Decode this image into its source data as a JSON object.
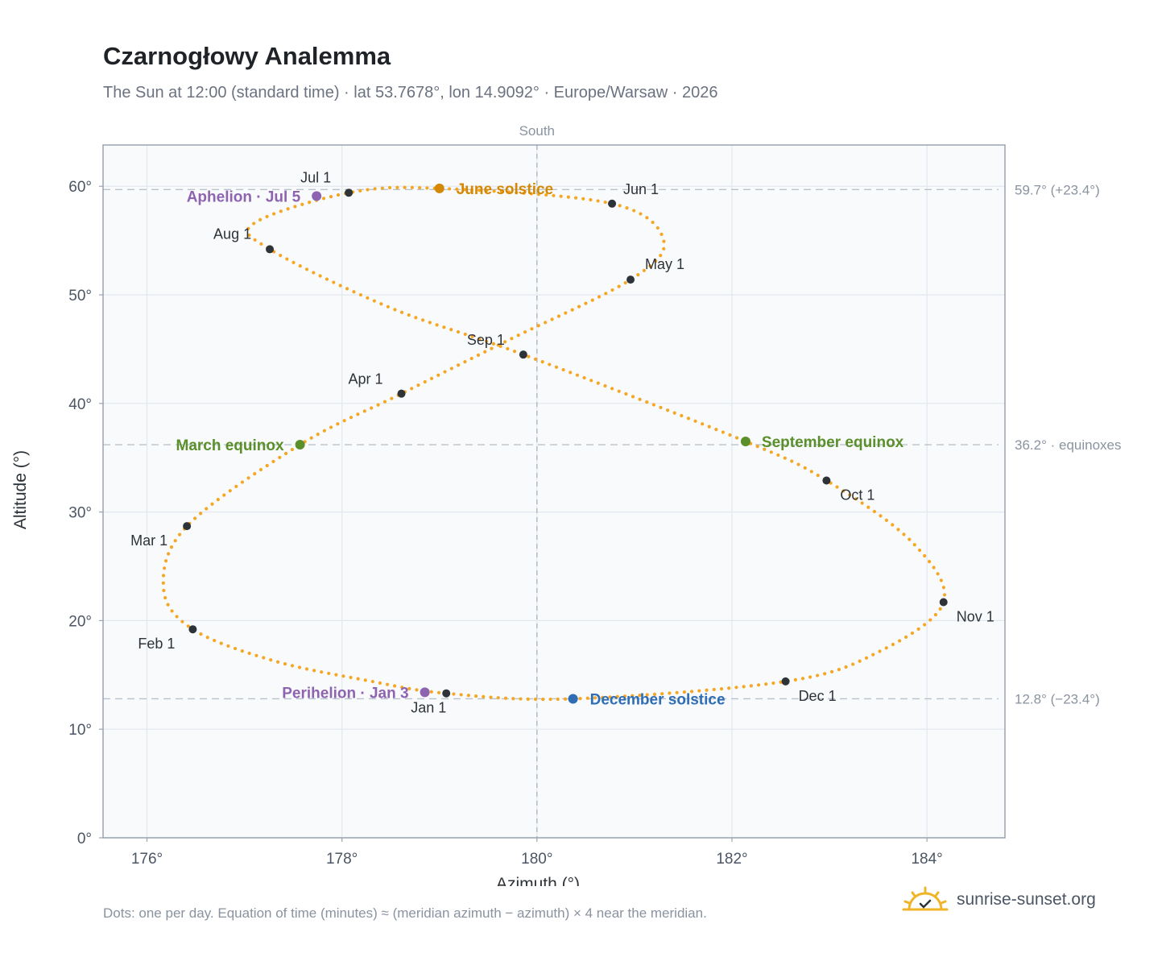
{
  "header": {
    "title": "Czarnogłowy Analemma",
    "subtitle": "The Sun at 12:00 (standard time) · lat 53.7678°, lon 14.9092° · Europe/Warsaw · 2026"
  },
  "footer": {
    "note": "Dots: one per day. Equation of time (minutes) ≈ (meridian azimuth − azimuth) × 4 near the meridian.",
    "brand": "sunrise-sunset.org"
  },
  "colors": {
    "curve": "#f5a623",
    "month_dot": "#2d3338",
    "june": "#d48806",
    "december": "#2f6db5",
    "equinox": "#5b8f2a",
    "apsis": "#8e63b0",
    "brand_sun": "#f0b429"
  },
  "chart_data": {
    "type": "scatter",
    "title": "Czarnogłowy Analemma",
    "xlabel": "Azimuth (°)",
    "ylabel": "Altitude (°)",
    "xlim": [
      175.55,
      184.8
    ],
    "ylim": [
      0,
      63.8
    ],
    "xticks": [
      176,
      178,
      180,
      182,
      184
    ],
    "xtick_labels": [
      "176°",
      "178°",
      "180°",
      "182°",
      "184°"
    ],
    "yticks": [
      0,
      10,
      20,
      30,
      40,
      50,
      60
    ],
    "ytick_labels": [
      "0°",
      "10°",
      "20°",
      "30°",
      "40°",
      "50°",
      "60°"
    ],
    "grid": true,
    "meridian": {
      "x": 180,
      "label": "South"
    },
    "reference_lines": [
      {
        "y": 59.7,
        "label": "59.7° (+23.4°)"
      },
      {
        "y": 36.2,
        "label": "36.2° · equinoxes"
      },
      {
        "y": 12.8,
        "label": "12.8° (−23.4°)"
      }
    ],
    "months": [
      {
        "label": "Jan 1",
        "x": 179.07,
        "y": 13.3
      },
      {
        "label": "Feb 1",
        "x": 176.47,
        "y": 19.2
      },
      {
        "label": "Mar 1",
        "x": 176.41,
        "y": 28.7
      },
      {
        "label": "Apr 1",
        "x": 178.61,
        "y": 40.9
      },
      {
        "label": "May 1",
        "x": 180.96,
        "y": 51.4
      },
      {
        "label": "Jun 1",
        "x": 180.77,
        "y": 58.4
      },
      {
        "label": "Jul 1",
        "x": 178.07,
        "y": 59.4
      },
      {
        "label": "Aug 1",
        "x": 177.26,
        "y": 54.2
      },
      {
        "label": "Sep 1",
        "x": 179.86,
        "y": 44.5
      },
      {
        "label": "Oct 1",
        "x": 182.97,
        "y": 32.9
      },
      {
        "label": "Nov 1",
        "x": 184.17,
        "y": 21.7
      },
      {
        "label": "Dec 1",
        "x": 182.55,
        "y": 14.4
      }
    ],
    "events": [
      {
        "label": "June solstice",
        "x": 179.0,
        "y": 59.8,
        "kind": "june"
      },
      {
        "label": "December solstice",
        "x": 180.37,
        "y": 12.8,
        "kind": "december"
      },
      {
        "label": "March equinox",
        "x": 177.57,
        "y": 36.2,
        "kind": "equinox"
      },
      {
        "label": "September equinox",
        "x": 182.14,
        "y": 36.5,
        "kind": "equinox"
      },
      {
        "label": "Aphelion · Jul 5",
        "x": 177.74,
        "y": 59.1,
        "kind": "apsis"
      },
      {
        "label": "Perihelion · Jan 3",
        "x": 178.85,
        "y": 13.4,
        "kind": "apsis"
      }
    ],
    "series": [
      {
        "points": [
          [
            179.07,
            13.3
          ],
          [
            178.25,
            14.5
          ],
          [
            177.3,
            16.3
          ],
          [
            176.47,
            19.2
          ],
          [
            176.17,
            23.0
          ],
          [
            176.41,
            28.7
          ],
          [
            177.57,
            36.2
          ],
          [
            178.61,
            40.9
          ],
          [
            179.7,
            45.8
          ],
          [
            180.96,
            51.4
          ],
          [
            181.3,
            55.0
          ],
          [
            180.77,
            58.4
          ],
          [
            179.0,
            59.8
          ],
          [
            178.07,
            59.4
          ],
          [
            177.1,
            56.6
          ],
          [
            177.26,
            54.2
          ],
          [
            178.5,
            48.8
          ],
          [
            179.86,
            44.5
          ],
          [
            182.14,
            36.5
          ],
          [
            182.97,
            32.9
          ],
          [
            183.85,
            27.2
          ],
          [
            184.17,
            21.7
          ],
          [
            183.5,
            17.1
          ],
          [
            182.55,
            14.4
          ],
          [
            180.37,
            12.8
          ],
          [
            179.07,
            13.3
          ]
        ]
      }
    ]
  }
}
